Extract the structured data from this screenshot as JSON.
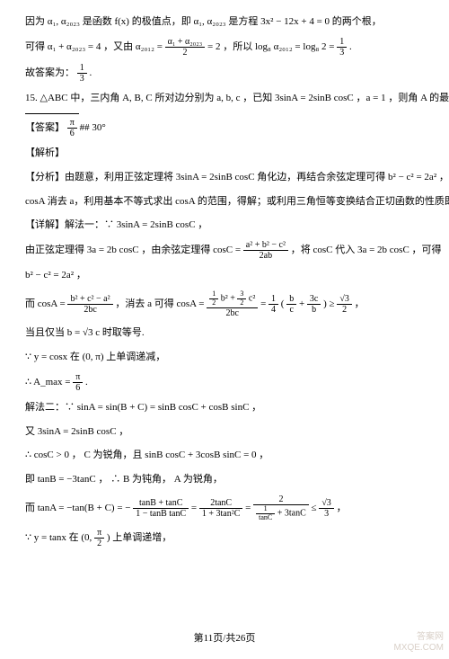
{
  "lines": {
    "l1a": "因为 α₁, α₂₀₂₃ 是函数 f(x) 的极值点，即 α₁, α₂₀₂₃ 是方程 3x² − 12x + 4 = 0 的两个根，",
    "l2a": "可得 α₁ + α₂₀₂₃ = 4 ，又由 α₂₀₁₂ = ",
    "l2b": " = 2 ，所以 log₈ α₂₀₁₂ = log₈ 2 = ",
    "l2c": " .",
    "l3a": "故答案为：",
    "l3b": " .",
    "q15": "15.  △ABC 中，三内角 A, B, C 所对边分别为 a, b, c ，已知 3sinA = 2sinB cosC ，a = 1 ，则角 A 的最大值是",
    "ans_lbl": "【答案】",
    "ans_txt": " ## 30°",
    "jiexi": "【解析】",
    "fx_a": "【分析】由题意，利用正弦定理将 3sinA = 2sinB cosC 角化边，再结合余弦定理可得 b² − c² = 2a² ，代入",
    "fx_b": "cosA 消去 a，利用基本不等式求出 cosA 的范围，得解；或利用三角恒等变换结合正切函数的性质即得.",
    "detail": "【详解】解法一：∵ 3sinA = 2sinB cosC ，",
    "sine": "由正弦定理得 3a = 2b cosC ，由余弦定理得 cosC = ",
    "sine_b": " ，将 cosC 代入 3a = 2b cosC ，可得",
    "eq1": "b² − c² = 2a² ，",
    "cosa_a": "而 cosA = ",
    "cosa_b": " ，消去 a 可得 ",
    "cosa_c": " ≥ ",
    "cosa_d": " ，",
    "iff": "当且仅当 b = √3 c 时取等号.",
    "mono": "∵ y = cosx 在 (0, π) 上单调递减，",
    "amax_a": "∴ A_max = ",
    "amax_b": " .",
    "m2a": "解法二：∵ sinA = sin(B + C) = sinB cosC + cosB sinC ，",
    "m2b": "又 3sinA = 2sinB cosC ，",
    "m2c": "∴ cosC > 0 ， C 为锐角，且 sinB cosC + 3cosB sinC = 0 ，",
    "m2d": "即 tanB = −3tanC ， ∴ B 为钝角， A 为锐角，",
    "m2e_a": "而 ",
    "m2e_b": " ≤ ",
    "m2e_c": " ，",
    "m2f": "∵ y = tanx 在 ",
    "m2f_b": " 上单调递增，"
  },
  "fracs": {
    "f1n": "α₁ + α₂₀₂₃",
    "f1d": "2",
    "f2n": "1",
    "f2d": "3",
    "f3n": "1",
    "f3d": "3",
    "ansn": "π",
    "ansd": "6",
    "coscn": "a² + b² − c²",
    "coscd": "2ab",
    "cosan": "b² + c² − a²",
    "cosad": "2bc",
    "half_n": "1",
    "half_d": "2",
    "threehalf_n": "3",
    "threehalf_d": "2",
    "quarter_n": "1",
    "quarter_d": "4",
    "bc_n": "b",
    "bc_d": "c",
    "cb_n": "3c",
    "cb_d": "b",
    "rt3_2n": "√3",
    "rt3_2d": "2",
    "pi6n": "π",
    "pi6d": "6",
    "tan_num": "tanB + tanC",
    "tan_den": "1 − tanB tanC",
    "tan2_num": "2tanC",
    "tan2_den": "1 + 3tan²C",
    "tan3_numtop": "2",
    "tan3_denA_n": "1",
    "tan3_denA_d": "tanC",
    "tan3_denB": " + 3tanC",
    "rt3_3n": "√3",
    "rt3_3d": "3",
    "pi2n": "π",
    "pi2d": "2",
    "cosa_mid_d": "2bc"
  },
  "extras": {
    "cosA_eq": "cosA = ",
    "three_over_2bc_n": " b² + ",
    "three_over_2bc_nB": " c²",
    "tan_lead": "tanA = −tan(B + C) = − ",
    "tan_eq1": " = ",
    "tan_eq2": " = ",
    "interval_open": "(0, ",
    "interval_close": ")"
  },
  "footer": "第11页/共26页",
  "watermark": {
    "a": "答案网",
    "b": "MXQE.COM"
  }
}
